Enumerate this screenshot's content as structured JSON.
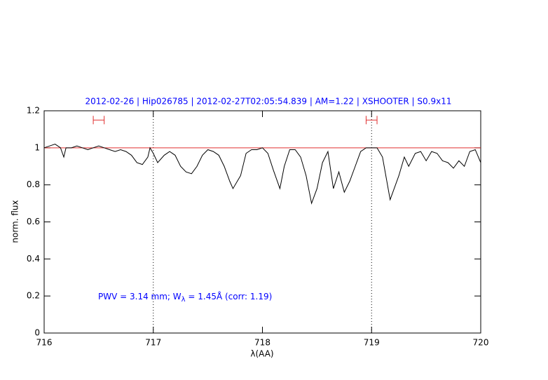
{
  "chart_data": {
    "type": "line",
    "title": "2012-02-26 | Hip026785 | 2012-02-27T02:05:54.839 | AM=1.22 | XSHOOTER | S0.9x11",
    "xlabel": "λ(AA)",
    "ylabel": "norm. flux",
    "annotation": {
      "before": "PWV = 3.14 mm; W",
      "sub": "λ",
      "after": " = 1.45Å (corr: 1.19)"
    },
    "xlim": [
      716,
      720
    ],
    "ylim": [
      0,
      1.2
    ],
    "xticks": [
      716,
      717,
      718,
      719,
      720
    ],
    "yticks": [
      0,
      0.2,
      0.4,
      0.6,
      0.8,
      1,
      1.2
    ],
    "series": [
      {
        "color": "#000000",
        "x": [
          716.0,
          716.05,
          716.1,
          716.15,
          716.18,
          716.2,
          716.25,
          716.3,
          716.35,
          716.4,
          716.45,
          716.5,
          716.55,
          716.6,
          716.65,
          716.7,
          716.75,
          716.8,
          716.85,
          716.9,
          716.95,
          716.97,
          717.0,
          717.04,
          717.1,
          717.15,
          717.2,
          717.25,
          717.3,
          717.35,
          717.4,
          717.45,
          717.5,
          717.55,
          717.6,
          717.65,
          717.7,
          717.73,
          717.8,
          717.85,
          717.9,
          717.95,
          718.0,
          718.05,
          718.1,
          718.16,
          718.2,
          718.25,
          718.3,
          718.35,
          718.4,
          718.45,
          718.5,
          718.55,
          718.6,
          718.65,
          718.7,
          718.75,
          718.8,
          718.85,
          718.9,
          718.95,
          719.0,
          719.05,
          719.1,
          719.17,
          719.25,
          719.3,
          719.34,
          719.4,
          719.45,
          719.5,
          719.55,
          719.6,
          719.65,
          719.7,
          719.75,
          719.8,
          719.85,
          719.9,
          719.95,
          720.0
        ],
        "values": [
          1.0,
          1.01,
          1.02,
          1.0,
          0.95,
          1.0,
          1.0,
          1.01,
          1.0,
          0.99,
          1.0,
          1.01,
          1.0,
          0.99,
          0.98,
          0.99,
          0.98,
          0.96,
          0.92,
          0.91,
          0.95,
          1.0,
          0.97,
          0.92,
          0.96,
          0.98,
          0.96,
          0.9,
          0.87,
          0.86,
          0.9,
          0.96,
          0.99,
          0.98,
          0.96,
          0.9,
          0.82,
          0.78,
          0.85,
          0.97,
          0.99,
          0.99,
          1.0,
          0.97,
          0.88,
          0.78,
          0.9,
          0.99,
          0.99,
          0.95,
          0.85,
          0.7,
          0.78,
          0.92,
          0.98,
          0.78,
          0.87,
          0.76,
          0.82,
          0.9,
          0.98,
          1.0,
          1.0,
          1.0,
          0.95,
          0.72,
          0.85,
          0.95,
          0.9,
          0.97,
          0.98,
          0.93,
          0.98,
          0.97,
          0.93,
          0.92,
          0.89,
          0.93,
          0.9,
          0.98,
          0.99,
          0.92
        ]
      }
    ],
    "hline": {
      "value": 1,
      "color": "#e03030"
    },
    "vlines": [
      717,
      719
    ],
    "ranges": [
      {
        "x": [
          716.45,
          716.55
        ],
        "y": 1.15,
        "color": "#e03030"
      },
      {
        "x": [
          718.95,
          719.05
        ],
        "y": 1.15,
        "color": "#e03030"
      }
    ],
    "text_color": "#0000ff"
  }
}
